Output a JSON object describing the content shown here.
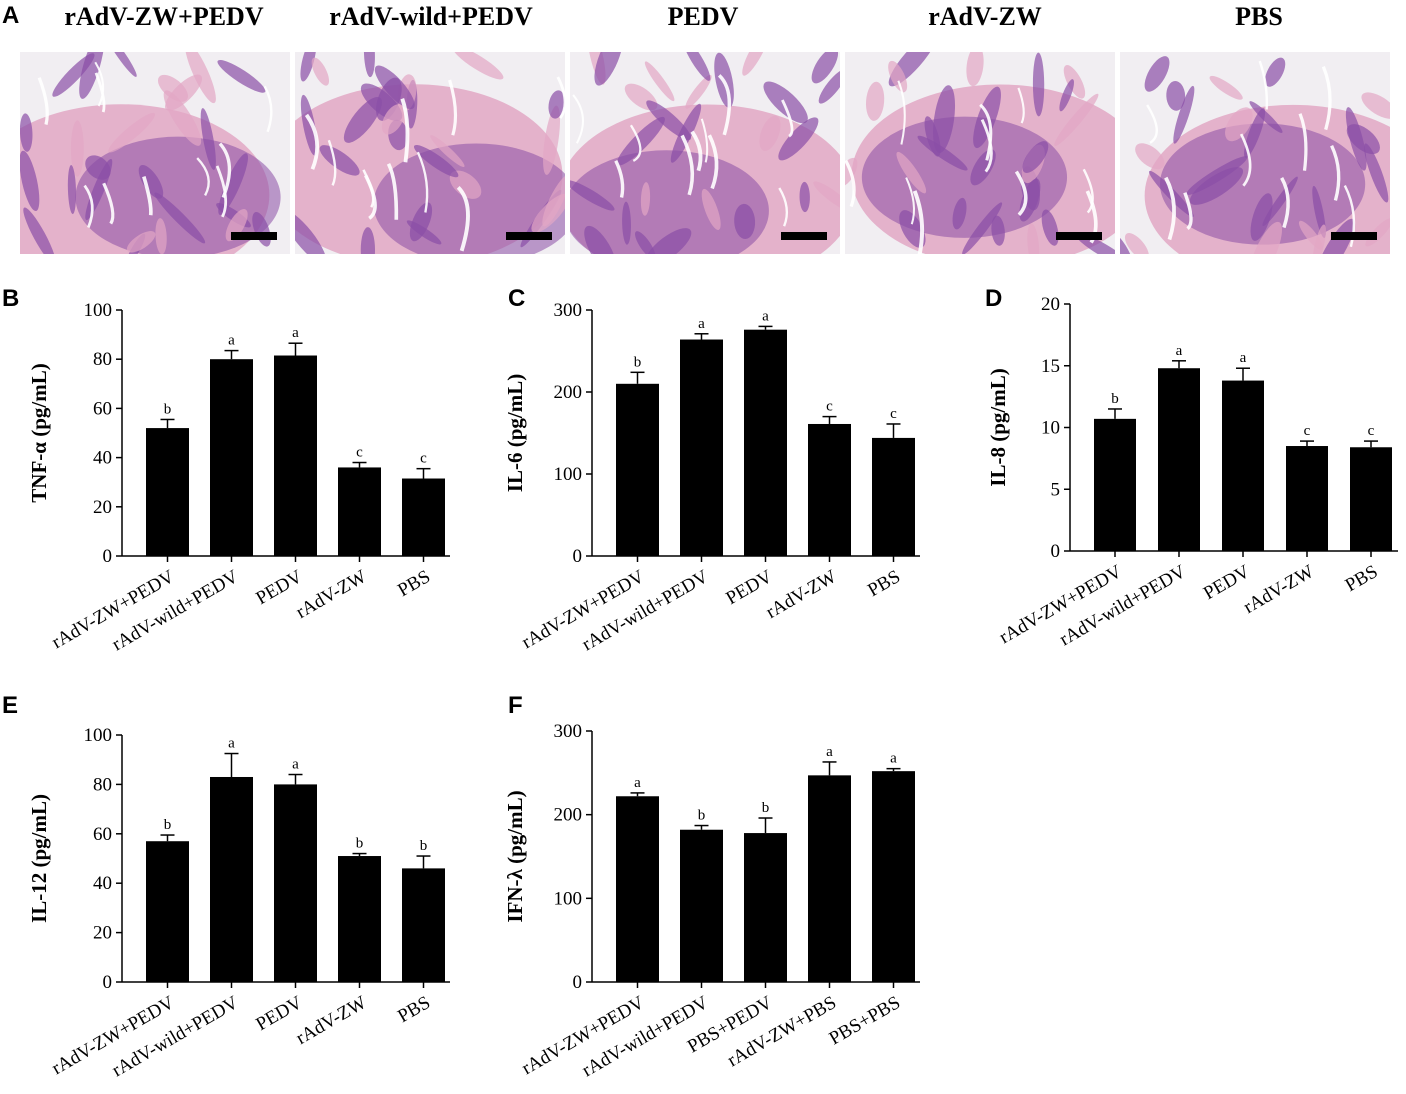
{
  "figure_a": {
    "letter": "A",
    "images": [
      {
        "title": "rAdV-ZW+PEDV"
      },
      {
        "title": "rAdV-wild+PEDV"
      },
      {
        "title": "PEDV"
      },
      {
        "title": "rAdV-ZW"
      },
      {
        "title": "PBS"
      }
    ]
  },
  "colors": {
    "bar": "#000000",
    "axis": "#000000",
    "tissue_dark": "#8a4fa6",
    "tissue_light": "#e2a7c4",
    "background": "#f1eef2"
  },
  "chart_data": [
    {
      "letter": "B",
      "type": "bar",
      "categories": [
        "rAdV-ZW+PEDV",
        "rAdV-wild+PEDV",
        "PEDV",
        "rAdV-ZW",
        "PBS"
      ],
      "values": [
        52,
        80,
        81.5,
        36,
        31.5
      ],
      "errors": [
        3.5,
        3.5,
        5,
        2,
        4
      ],
      "letters": [
        "b",
        "a",
        "a",
        "c",
        "c"
      ],
      "ylabel": "TNF-α (pg/mL)",
      "ylim": [
        0,
        100
      ],
      "yticks": [
        0,
        20,
        40,
        60,
        80,
        100
      ]
    },
    {
      "letter": "C",
      "type": "bar",
      "categories": [
        "rAdV-ZW+PEDV",
        "rAdV-wild+PEDV",
        "PEDV",
        "rAdV-ZW",
        "PBS"
      ],
      "values": [
        210,
        264,
        276,
        161,
        144
      ],
      "errors": [
        14,
        7,
        4,
        9,
        17
      ],
      "letters": [
        "b",
        "a",
        "a",
        "c",
        "c"
      ],
      "ylabel": "IL-6 (pg/mL)",
      "ylim": [
        0,
        300
      ],
      "yticks": [
        0,
        100,
        200,
        300
      ]
    },
    {
      "letter": "D",
      "type": "bar",
      "categories": [
        "rAdV-ZW+PEDV",
        "rAdV-wild+PEDV",
        "PEDV",
        "rAdV-ZW",
        "PBS"
      ],
      "values": [
        10.7,
        14.8,
        13.8,
        8.5,
        8.4
      ],
      "errors": [
        0.8,
        0.6,
        1.0,
        0.4,
        0.5
      ],
      "letters": [
        "b",
        "a",
        "a",
        "c",
        "c"
      ],
      "ylabel": "IL-8 (pg/mL)",
      "ylim": [
        0,
        20
      ],
      "yticks": [
        0,
        5,
        10,
        15,
        20
      ]
    },
    {
      "letter": "E",
      "type": "bar",
      "categories": [
        "rAdV-ZW+PEDV",
        "rAdV-wild+PEDV",
        "PEDV",
        "rAdV-ZW",
        "PBS"
      ],
      "values": [
        57,
        83,
        80,
        51,
        46
      ],
      "errors": [
        2.5,
        9.5,
        4,
        1,
        5
      ],
      "letters": [
        "b",
        "a",
        "a",
        "b",
        "b"
      ],
      "ylabel": "IL-12 (pg/mL)",
      "ylim": [
        0,
        100
      ],
      "yticks": [
        0,
        20,
        40,
        60,
        80,
        100
      ]
    },
    {
      "letter": "F",
      "type": "bar",
      "categories": [
        "rAdV-ZW+PEDV",
        "rAdV-wild+PEDV",
        "PBS+PEDV",
        "rAdV-ZW+PBS",
        "PBS+PBS"
      ],
      "values": [
        222,
        182,
        178,
        247,
        252
      ],
      "errors": [
        4,
        5,
        18,
        16,
        3
      ],
      "letters": [
        "a",
        "b",
        "b",
        "a",
        "a"
      ],
      "ylabel": "IFN-λ (pg/mL)",
      "ylim": [
        0,
        300
      ],
      "yticks": [
        0,
        100,
        200,
        300
      ]
    }
  ]
}
